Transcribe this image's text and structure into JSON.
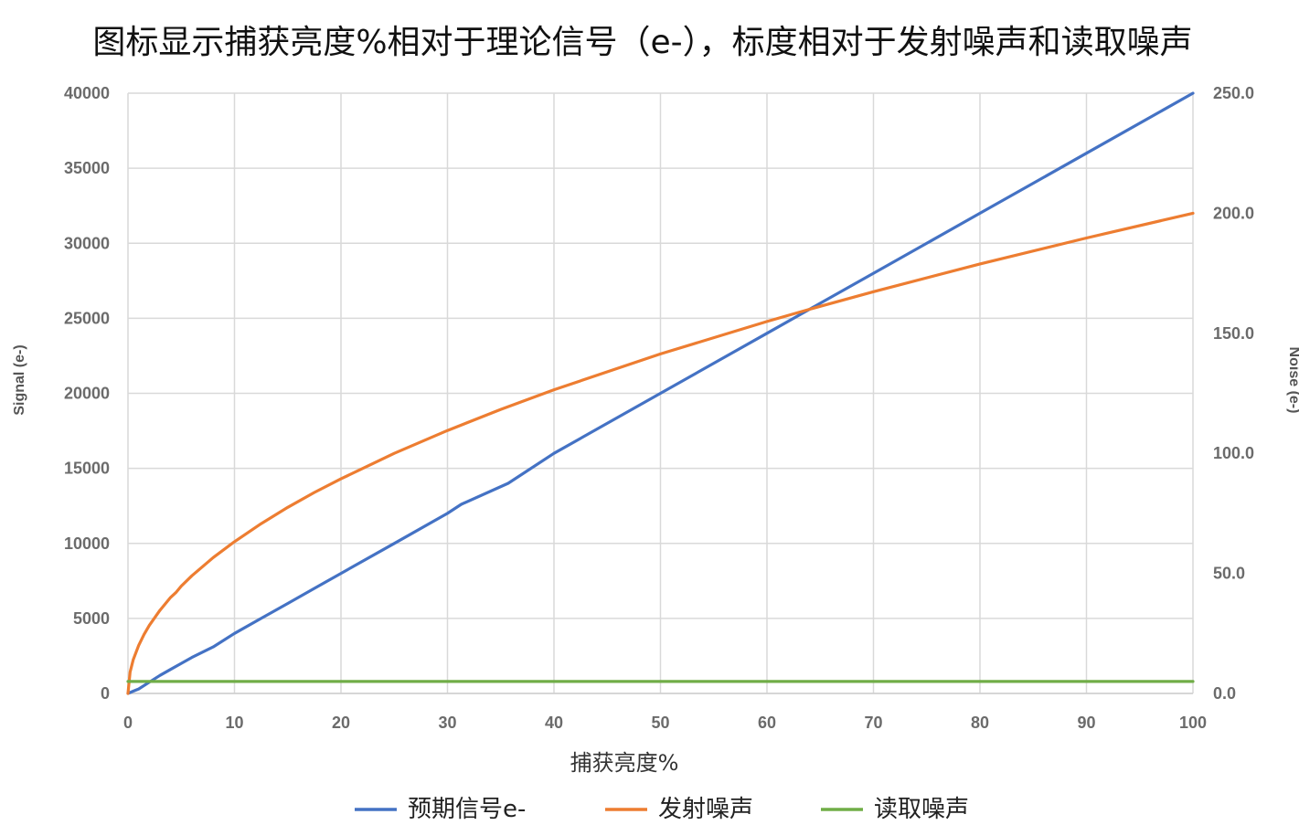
{
  "chart_data": {
    "type": "line",
    "title": "图标显示捕获亮度%相对于理论信号（e-），标度相对于发射噪声和读取噪声",
    "xlabel": "捕获亮度%",
    "ylabel": "Signal (e-)",
    "y2label": "Noise (e-)",
    "xlim": [
      0,
      100
    ],
    "ylim": [
      0,
      40000
    ],
    "y2lim": [
      0,
      250
    ],
    "xticks": [
      "0",
      "10",
      "20",
      "30",
      "40",
      "50",
      "60",
      "70",
      "80",
      "90",
      "100"
    ],
    "yticks": [
      "0",
      "5000",
      "10000",
      "15000",
      "20000",
      "25000",
      "30000",
      "35000",
      "40000"
    ],
    "y2ticks": [
      "0.0",
      "50.0",
      "100.0",
      "150.0",
      "200.0",
      "250.0"
    ],
    "grid": true,
    "legend_position": "bottom",
    "series": [
      {
        "name": "预期信号e-",
        "axis": "left",
        "color": "#4472c4",
        "x": [
          0,
          0.5,
          1,
          2,
          3,
          4,
          5,
          6,
          8,
          10,
          12.5,
          15,
          17.5,
          20,
          25,
          30,
          31.3,
          35.7,
          40,
          50,
          60,
          64,
          70,
          80,
          90,
          100
        ],
        "y": [
          0,
          150,
          300,
          750,
          1200,
          1600,
          2000,
          2400,
          3100,
          4000,
          5000,
          6000,
          7000,
          8000,
          10000,
          12000,
          12600,
          14000,
          16000,
          20000,
          24000,
          25600,
          28000,
          32000,
          36000,
          40000
        ]
      },
      {
        "name": "发射噪声",
        "axis": "right",
        "color": "#ed7d31",
        "x": [
          0,
          0.2,
          0.5,
          1,
          1.5,
          2,
          3,
          4,
          4.5,
          5,
          6,
          8,
          10,
          12.5,
          15,
          17.5,
          20,
          25,
          30,
          35,
          40,
          50,
          60,
          64,
          70,
          80,
          90,
          100
        ],
        "y": [
          0,
          8.9,
          14.1,
          20,
          24.5,
          28.3,
          34.6,
          40,
          42,
          44.7,
          49,
          56.6,
          63.2,
          70.7,
          77.5,
          83.7,
          89.4,
          100,
          109.5,
          118.3,
          126.5,
          141.4,
          154.9,
          160,
          167.3,
          178.9,
          189.7,
          200
        ]
      },
      {
        "name": "读取噪声",
        "axis": "right",
        "color": "#70ad47",
        "x": [
          0,
          100
        ],
        "y": [
          5,
          5
        ]
      }
    ]
  }
}
